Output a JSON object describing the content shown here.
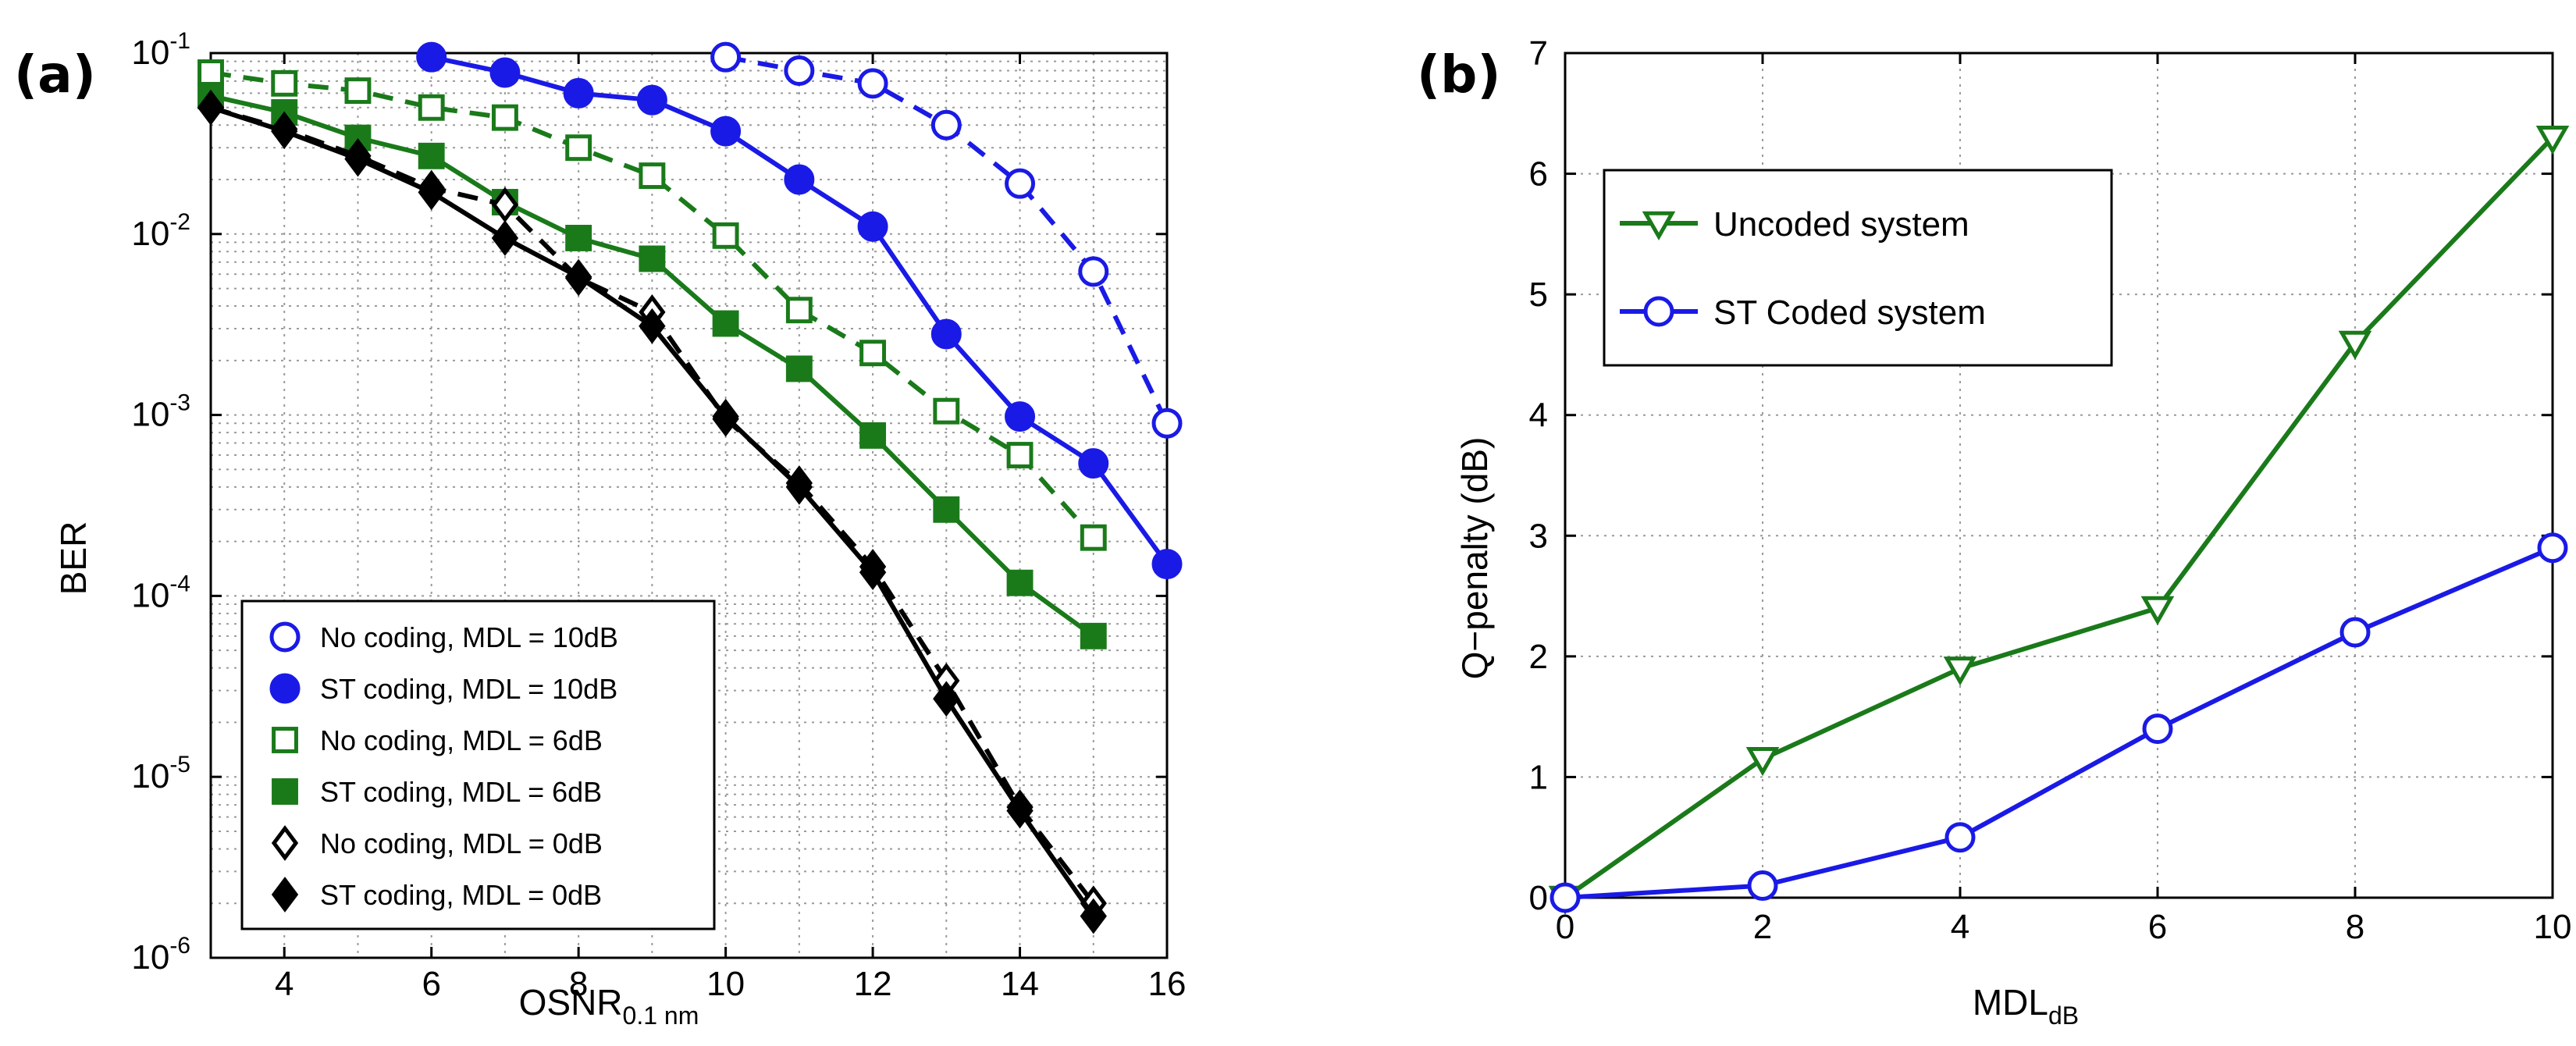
{
  "chart_data": [
    {
      "panel": "(a)",
      "type": "line",
      "title": "",
      "xlabel": "OSNR",
      "xlabel_sub": "0.1 nm",
      "ylabel": "BER",
      "xlim": [
        3,
        16
      ],
      "ylim": [
        1e-06,
        0.1
      ],
      "yscale": "log",
      "grid": true,
      "legend_position": "bottom-left",
      "xticks": [
        "4",
        "6",
        "8",
        "10",
        "12",
        "14",
        "16"
      ],
      "yticks": [
        {
          "base": "10",
          "exp": "-1"
        },
        {
          "base": "10",
          "exp": "-2"
        },
        {
          "base": "10",
          "exp": "-3"
        },
        {
          "base": "10",
          "exp": "-4"
        },
        {
          "base": "10",
          "exp": "-5"
        },
        {
          "base": "10",
          "exp": "-6"
        }
      ],
      "series": [
        {
          "name": "No coding, MDL = 10dB",
          "color": "#1a1ae6",
          "dash": true,
          "marker": "circle",
          "filled": false,
          "x": [
            10,
            11,
            12,
            13,
            14,
            15,
            16
          ],
          "y": [
            0.095,
            0.08,
            0.068,
            0.04,
            0.019,
            0.0062,
            0.0009
          ]
        },
        {
          "name": "ST coding, MDL = 10dB",
          "color": "#1a1ae6",
          "dash": false,
          "marker": "circle",
          "filled": true,
          "x": [
            6,
            7,
            8,
            9,
            10,
            11,
            12,
            13,
            14,
            15,
            16
          ],
          "y": [
            0.095,
            0.078,
            0.06,
            0.055,
            0.037,
            0.02,
            0.011,
            0.0028,
            0.00098,
            0.00054,
            0.00015
          ]
        },
        {
          "name": "No coding, MDL = 6dB",
          "color": "#1a7a1a",
          "dash": true,
          "marker": "square",
          "filled": false,
          "x": [
            3,
            4,
            5,
            6,
            7,
            8,
            9,
            10,
            11,
            12,
            13,
            14,
            15
          ],
          "y": [
            0.078,
            0.068,
            0.062,
            0.05,
            0.044,
            0.03,
            0.021,
            0.0098,
            0.0038,
            0.0022,
            0.00105,
            0.0006,
            0.00021
          ]
        },
        {
          "name": "ST coding, MDL = 6dB",
          "color": "#1a7a1a",
          "dash": false,
          "marker": "square",
          "filled": true,
          "x": [
            3,
            4,
            5,
            6,
            7,
            8,
            9,
            10,
            11,
            12,
            13,
            14,
            15
          ],
          "y": [
            0.058,
            0.047,
            0.034,
            0.027,
            0.015,
            0.0095,
            0.0073,
            0.0032,
            0.0018,
            0.00077,
            0.0003,
            0.000118,
            6e-05
          ]
        },
        {
          "name": "No coding, MDL = 0dB",
          "color": "#000000",
          "dash": true,
          "marker": "diamond",
          "filled": false,
          "x": [
            3,
            4,
            5,
            6,
            7,
            8,
            9,
            10,
            11,
            12,
            13,
            14,
            15
          ],
          "y": [
            0.05,
            0.038,
            0.027,
            0.018,
            0.0145,
            0.0057,
            0.0037,
            0.00095,
            0.00042,
            0.000145,
            3.4e-05,
            6.8e-06,
            2e-06
          ]
        },
        {
          "name": "ST coding, MDL = 0dB",
          "color": "#000000",
          "dash": false,
          "marker": "diamond",
          "filled": true,
          "x": [
            3,
            4,
            5,
            6,
            7,
            8,
            9,
            10,
            11,
            12,
            13,
            14,
            15
          ],
          "y": [
            0.05,
            0.037,
            0.026,
            0.017,
            0.0095,
            0.0058,
            0.0031,
            0.00098,
            0.0004,
            0.000135,
            2.7e-05,
            6.5e-06,
            1.7e-06
          ]
        }
      ]
    },
    {
      "panel": "(b)",
      "type": "line",
      "title": "",
      "xlabel": "MDL",
      "xlabel_sub": "dB",
      "ylabel": "Q−penalty (dB)",
      "xlim": [
        0,
        10
      ],
      "ylim": [
        0,
        7
      ],
      "grid": true,
      "legend_position": "top-left",
      "xticks": [
        "0",
        "2",
        "4",
        "6",
        "8",
        "10"
      ],
      "yticks": [
        "0",
        "1",
        "2",
        "3",
        "4",
        "5",
        "6",
        "7"
      ],
      "series": [
        {
          "name": "Uncoded system",
          "color": "#1a7a1a",
          "marker": "triangle-down",
          "x": [
            0,
            2,
            4,
            6,
            8,
            10
          ],
          "y": [
            0.0,
            1.15,
            1.9,
            2.4,
            4.6,
            6.3
          ]
        },
        {
          "name": "ST Coded system",
          "color": "#1a1ae6",
          "marker": "circle",
          "x": [
            0,
            2,
            4,
            6,
            8,
            10
          ],
          "y": [
            0.0,
            0.1,
            0.5,
            1.4,
            2.2,
            2.9
          ]
        }
      ]
    }
  ]
}
